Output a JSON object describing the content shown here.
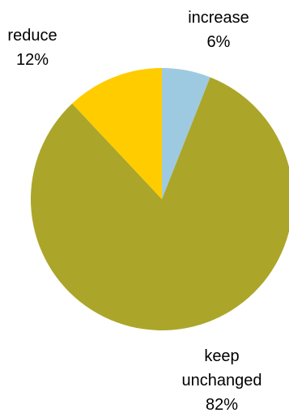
{
  "chart_data": {
    "type": "pie",
    "slices": [
      {
        "label": "increase",
        "value": 6,
        "value_text": "6%",
        "color": "#9ecae1"
      },
      {
        "label": "keep unchanged",
        "value": 82,
        "value_text": "82%",
        "color": "#aba629"
      },
      {
        "label": "reduce",
        "value": 12,
        "value_text": "12%",
        "color": "#ffcc00"
      }
    ],
    "label_lines": [
      [
        "increase",
        "6%"
      ],
      [
        "keep",
        "unchanged",
        "82%"
      ],
      [
        "reduce",
        "12%"
      ]
    ],
    "start_angle_deg": 0,
    "direction": "clockwise",
    "legend": "none"
  }
}
